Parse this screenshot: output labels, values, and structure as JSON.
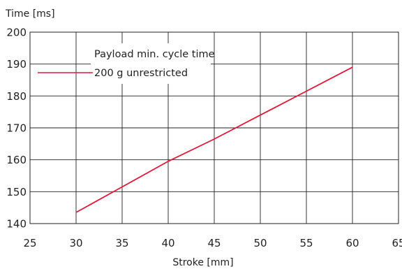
{
  "chart_data": {
    "type": "line",
    "ylabel": "Time [ms]",
    "xlabel": "Stroke [mm]",
    "xlim": [
      25,
      65
    ],
    "ylim": [
      140,
      200
    ],
    "x_ticks": [
      25,
      30,
      35,
      40,
      45,
      50,
      55,
      60,
      65
    ],
    "y_ticks": [
      140,
      150,
      160,
      170,
      180,
      190,
      200
    ],
    "grid": true,
    "legend_title": "Payload min. cycle time",
    "legend_placement": "top-left",
    "series": [
      {
        "name": "200 g unrestricted",
        "color": "#e2173a",
        "x": [
          30,
          35,
          40,
          45,
          50,
          55,
          60
        ],
        "y": [
          143.5,
          151.5,
          159.5,
          166.5,
          174,
          181.5,
          189
        ]
      }
    ]
  }
}
